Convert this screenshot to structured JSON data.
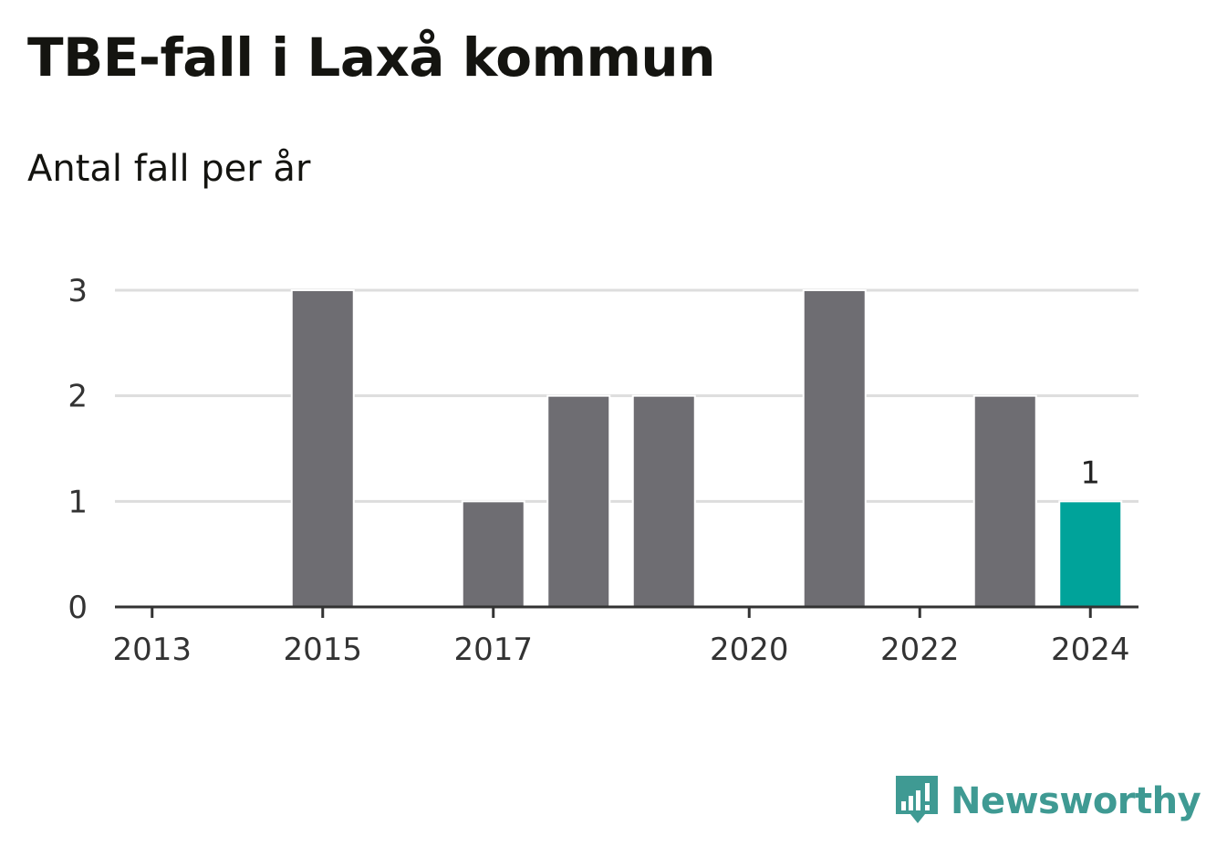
{
  "header": {
    "title": "TBE-fall i Laxå kommun",
    "subtitle": "Antal fall per år"
  },
  "brand": {
    "name": "Newsworthy",
    "icon": "newsworthy-logo-icon",
    "color": "#3f9a93"
  },
  "colors": {
    "bar": "#6e6d72",
    "highlight": "#00a39a",
    "grid": "#dddddd",
    "axis": "#333333"
  },
  "chart_data": {
    "type": "bar",
    "title": "TBE-fall i Laxå kommun",
    "subtitle": "Antal fall per år",
    "xlabel": "",
    "ylabel": "",
    "categories": [
      "2013",
      "2014",
      "2015",
      "2016",
      "2017",
      "2018",
      "2019",
      "2020",
      "2021",
      "2022",
      "2023",
      "2024"
    ],
    "values": [
      0,
      0,
      3,
      0,
      1,
      2,
      2,
      0,
      3,
      0,
      2,
      1
    ],
    "x_tick_labels": [
      "2013",
      "2015",
      "2017",
      "2020",
      "2022",
      "2024"
    ],
    "y_ticks": [
      0,
      1,
      2,
      3
    ],
    "ylim": [
      0,
      3
    ],
    "grid": true,
    "highlight_category": "2024",
    "data_labels": [
      {
        "category": "2024",
        "text": "1"
      }
    ]
  }
}
